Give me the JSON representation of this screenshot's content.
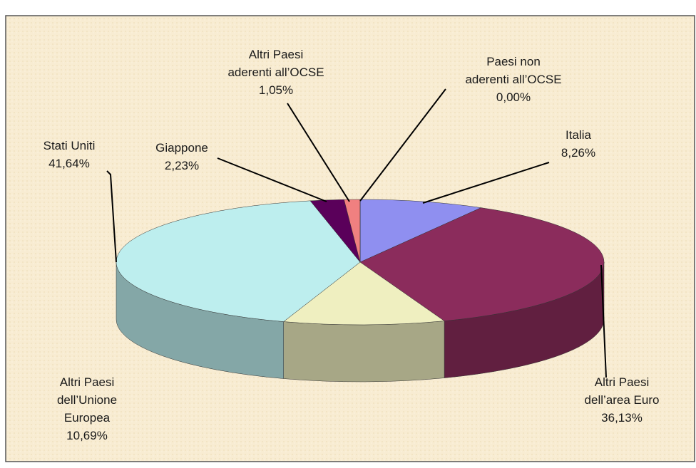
{
  "chart_data": {
    "type": "pie3d",
    "categories": [
      "Italia",
      "Altri Paesi\ndell’area  Euro",
      "Altri Paesi\ndell’Unione\nEuropea",
      "Stati Uniti",
      "Giappone",
      "Altri Paesi\naderenti all’OCSE",
      "Paesi non\naderenti all’OCSE"
    ],
    "values": [
      8.26,
      36.13,
      10.69,
      41.64,
      2.23,
      1.05,
      0.0
    ],
    "value_labels": [
      "8,26%",
      "36,13%",
      "10,69%",
      "41,64%",
      "2,23%",
      "1,05%",
      "0,00%"
    ],
    "colors": [
      "#8f8ff0",
      "#8b2c5c",
      "#efefc0",
      "#bdeeee",
      "#5a005a",
      "#f08080",
      "#3060c0"
    ]
  }
}
